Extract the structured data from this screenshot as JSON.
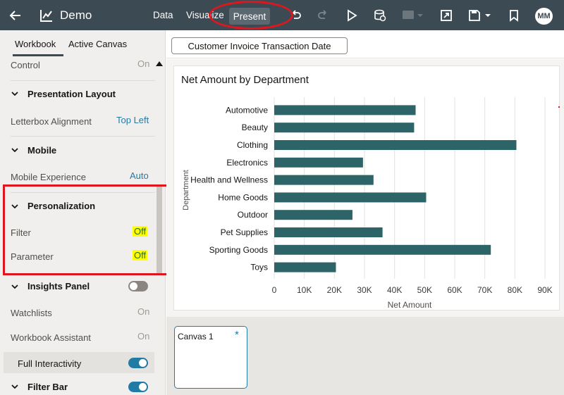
{
  "app": {
    "title": "Demo",
    "back_icon": "arrow-left-icon",
    "app_icon": "chart-icon"
  },
  "nav": {
    "data": "Data",
    "visualize": "Visualize",
    "present": "Present"
  },
  "toolbar": {
    "icons": [
      "undo-icon",
      "redo-icon",
      "play-icon",
      "data-refresh-icon",
      "comment-icon",
      "export-icon",
      "save-icon",
      "bookmark-icon"
    ],
    "avatar": "MM"
  },
  "left_panel": {
    "tabs": [
      "Workbook",
      "Active Canvas"
    ],
    "control": {
      "label": "Control",
      "value": "On"
    },
    "presentation_layout": {
      "header": "Presentation Layout",
      "letterbox_label": "Letterbox Alignment",
      "letterbox_value": "Top Left"
    },
    "mobile": {
      "header": "Mobile",
      "experience_label": "Mobile Experience",
      "experience_value": "Auto"
    },
    "personalization": {
      "header": "Personalization",
      "filter_label": "Filter",
      "filter_value": "Off",
      "parameter_label": "Parameter",
      "parameter_value": "Off"
    },
    "insights": {
      "header": "Insights Panel",
      "watchlists_label": "Watchlists",
      "watchlists_value": "On",
      "assistant_label": "Workbook Assistant",
      "assistant_value": "On"
    },
    "full_interactivity": "Full Interactivity",
    "filter_bar": "Filter Bar"
  },
  "filter": {
    "pill": "Customer Invoice Transaction Date"
  },
  "chart_data": {
    "type": "bar",
    "orientation": "horizontal",
    "title": "Net Amount by Department",
    "xlabel": "Net Amount",
    "ylabel": "Department",
    "categories": [
      "Automotive",
      "Beauty",
      "Clothing",
      "Electronics",
      "Health and Wellness",
      "Home Goods",
      "Outdoor",
      "Pet Supplies",
      "Sporting Goods",
      "Toys"
    ],
    "values": [
      47000,
      46500,
      80500,
      29500,
      33000,
      50500,
      26000,
      36000,
      72000,
      20500
    ],
    "xticks": [
      "0",
      "10K",
      "20K",
      "30K",
      "40K",
      "50K",
      "60K",
      "70K",
      "80K",
      "90K"
    ],
    "xlim": [
      0,
      90000
    ],
    "bar_color": "#2d6468",
    "grid": true
  },
  "canvas": {
    "tab_label": "Canvas 1",
    "modified_marker": "*"
  },
  "colors": {
    "topbar": "#3c4a53",
    "accent": "#227ba5",
    "highlight": "#ffff00",
    "annotation": "#e0161e"
  }
}
